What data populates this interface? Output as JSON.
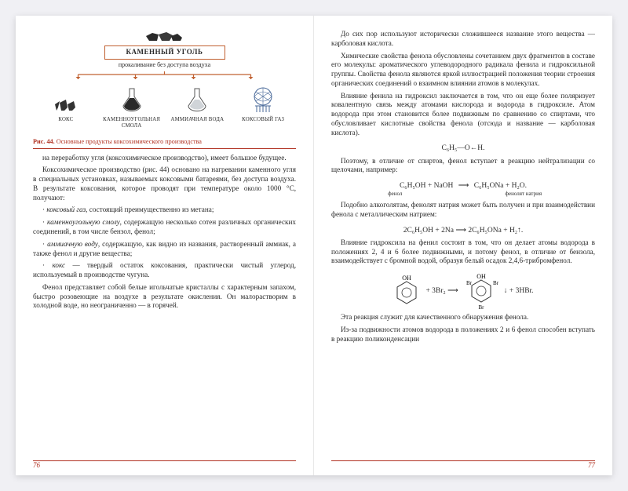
{
  "colors": {
    "accent": "#c06030",
    "caption": "#b03020",
    "text": "#2a2a2a",
    "bg": "#ffffff"
  },
  "diagram": {
    "coal_title": "КАМЕННЫЙ УГОЛЬ",
    "process": "прокаливание без доступа воздуха",
    "products": [
      {
        "label": "КОКС"
      },
      {
        "label": "КАМЕННОУГОЛЬНАЯ СМОЛА"
      },
      {
        "label": "АММИАЧНАЯ ВОДА"
      },
      {
        "label": "КОКСОВЫЙ ГАЗ"
      }
    ]
  },
  "figure_caption_b": "Рис. 44.",
  "figure_caption": " Основные продукты коксохимического производства",
  "left_paras": [
    "на переработку угля (коксохимическое производство), имеет большое будущее.",
    "Коксохимическое производство (рис. 44) основано на нагревании каменного угля в специальных установках, называемых коксовыми батареями, без доступа воздуха. В результате коксования, которое проводят при температуре около 1000 °С, получают:",
    "· <span class=\"em\">коксовый газ</span>, состоящий преимущественно из метана;",
    "· <span class=\"em\">каменноугольную смолу</span>, содержащую несколько сотен различных органических соединений, в том числе бензол, фенол;",
    "· <span class=\"em\">аммиачную воду</span>, содержащую, как видно из названия, растворенный аммиак, а также фенол и другие вещества;",
    "· <span class=\"em\">кокс</span> — твердый остаток коксования, практически чистый углерод, используемый в производстве чугуна.",
    "Фенол представляет собой белые игольчатые кристаллы с характерным запахом, быстро розовеющие на воздухе в результате окисления. Он малорастворим в холодной воде, но неограниченно — в горячей."
  ],
  "right_paras": {
    "p1": "До сих пор используют исторически сложившееся название этого вещества — карболовая кислота.",
    "p2": "Химические свойства фенола обусловлены сочетанием двух фрагментов в составе его молекулы: ароматического углеводородного радикала фенила и гидроксильной группы. Свойства фенола являются яркой иллюстрацией положения теории строения органических соединений о взаимном влиянии атомов в молекулах.",
    "p3": "Влияние фенила на гидроксил заключается в том, что он еще более поляризует ковалентную связь между атомами кислорода и водорода в гидроксиле. Атом водорода при этом становится более подвижным по сравнению со спиртами, что обусловливает кислотные свойства фенола (отсюда и название — карболовая кислота).",
    "p4": "Поэтому, в отличие от спиртов, фенол вступает в реакцию нейтрализации со щелочами, например:",
    "p5": "Подобно алкоголятам, фенолят натрия может быть получен и при взаимодействии фенола с металлическим натрием:",
    "p6": "Влияние гидроксила на фенил состоит в том, что он делает атомы водорода в положениях 2, 4 и 6 более подвижными, и потому фенол, в отличие от бензола, взаимодействует с бромной водой, образуя белый осадок 2,4,6-трибромфенол.",
    "p7": "Эта реакция служит для качественного обнаружения фенола.",
    "p8": "Из-за подвижности атомов водорода в положениях 2 и 6 фенол способен вступать в реакцию поликонденсации"
  },
  "formulas": {
    "f1": "C₆H₅—O←H.",
    "f2_l": "C₆H₅OH + NaOH",
    "f2_r": "C₆H₅ONa + H₂O.",
    "f2_lab_l": "фенол",
    "f2_lab_r": "фенолят натрия",
    "f3": "2C₆H₅OH + 2Na ⟶ 2C₆H₅ONa + H₂↑.",
    "f4_l": "+ 3Br₂ ⟶",
    "f4_r": "↓ + 3HBr."
  },
  "page_left": "76",
  "page_right": "77"
}
